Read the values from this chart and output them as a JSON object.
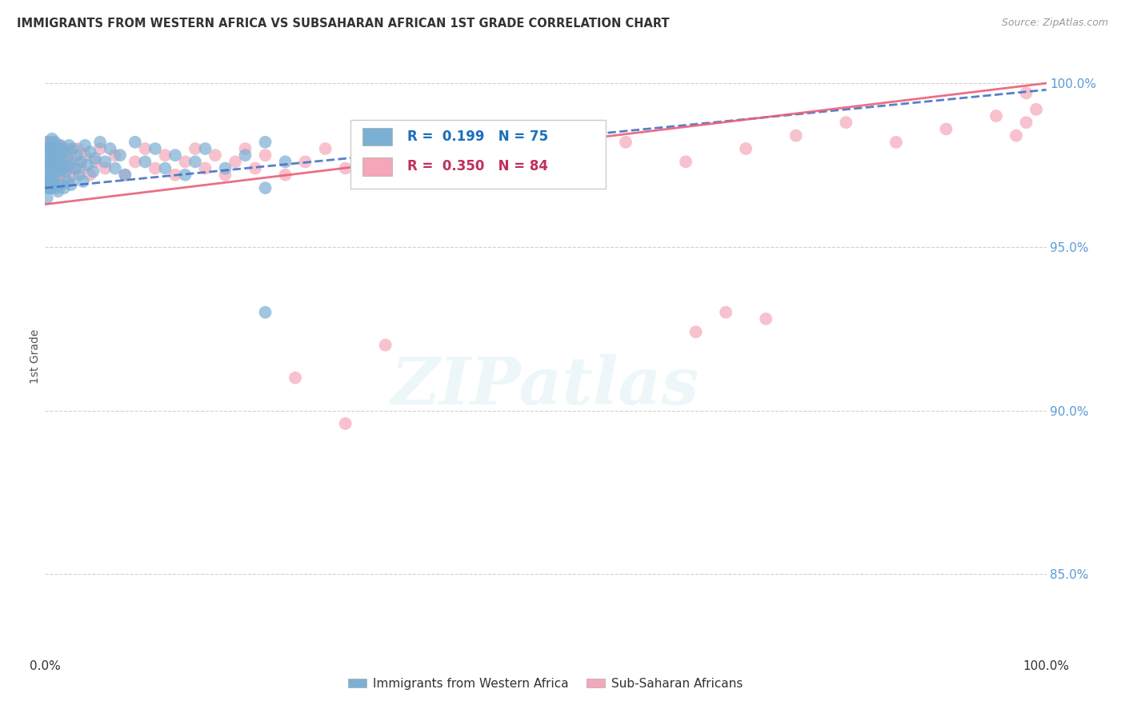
{
  "title": "IMMIGRANTS FROM WESTERN AFRICA VS SUBSAHARAN AFRICAN 1ST GRADE CORRELATION CHART",
  "source": "Source: ZipAtlas.com",
  "legend_blue_label": "Immigrants from Western Africa",
  "legend_pink_label": "Sub-Saharan Africans",
  "R_blue": 0.199,
  "N_blue": 75,
  "R_pink": 0.35,
  "N_pink": 84,
  "blue_color": "#7bafd4",
  "pink_color": "#f4a7b9",
  "blue_line_color": "#4472c4",
  "pink_line_color": "#e8607a",
  "background_color": "#ffffff",
  "grid_color": "#cccccc",
  "title_color": "#333333",
  "right_axis_color": "#5b9bd5",
  "ylabel": "1st Grade",
  "watermark": "ZIPatlas",
  "xlim": [
    0.0,
    1.0
  ],
  "ylim": [
    0.825,
    1.008
  ],
  "yticks": [
    0.85,
    0.9,
    0.95,
    1.0
  ],
  "ytick_labels": [
    "85.0%",
    "90.0%",
    "95.0%",
    "100.0%"
  ],
  "blue_scatter_x": [
    0.001,
    0.001,
    0.001,
    0.002,
    0.002,
    0.002,
    0.003,
    0.003,
    0.003,
    0.004,
    0.004,
    0.005,
    0.005,
    0.006,
    0.006,
    0.007,
    0.007,
    0.007,
    0.008,
    0.008,
    0.009,
    0.009,
    0.01,
    0.01,
    0.011,
    0.011,
    0.012,
    0.013,
    0.013,
    0.014,
    0.015,
    0.015,
    0.016,
    0.016,
    0.017,
    0.018,
    0.019,
    0.02,
    0.021,
    0.022,
    0.023,
    0.024,
    0.025,
    0.026,
    0.028,
    0.03,
    0.032,
    0.034,
    0.036,
    0.038,
    0.04,
    0.042,
    0.045,
    0.048,
    0.05,
    0.055,
    0.06,
    0.065,
    0.07,
    0.075,
    0.08,
    0.09,
    0.1,
    0.11,
    0.12,
    0.13,
    0.14,
    0.15,
    0.16,
    0.18,
    0.2,
    0.22,
    0.24,
    0.22,
    0.22
  ],
  "blue_scatter_y": [
    0.98,
    0.975,
    0.972,
    0.978,
    0.97,
    0.965,
    0.982,
    0.975,
    0.968,
    0.979,
    0.972,
    0.976,
    0.968,
    0.98,
    0.97,
    0.983,
    0.975,
    0.968,
    0.979,
    0.972,
    0.978,
    0.97,
    0.982,
    0.973,
    0.976,
    0.968,
    0.98,
    0.974,
    0.967,
    0.978,
    0.981,
    0.973,
    0.976,
    0.969,
    0.98,
    0.974,
    0.968,
    0.979,
    0.973,
    0.977,
    0.97,
    0.981,
    0.975,
    0.969,
    0.98,
    0.974,
    0.978,
    0.972,
    0.976,
    0.97,
    0.981,
    0.975,
    0.979,
    0.973,
    0.977,
    0.982,
    0.976,
    0.98,
    0.974,
    0.978,
    0.972,
    0.982,
    0.976,
    0.98,
    0.974,
    0.978,
    0.972,
    0.976,
    0.98,
    0.974,
    0.978,
    0.982,
    0.976,
    0.93,
    0.968
  ],
  "pink_scatter_x": [
    0.001,
    0.001,
    0.002,
    0.002,
    0.003,
    0.003,
    0.004,
    0.004,
    0.005,
    0.005,
    0.006,
    0.006,
    0.007,
    0.007,
    0.008,
    0.009,
    0.01,
    0.01,
    0.011,
    0.012,
    0.013,
    0.014,
    0.015,
    0.016,
    0.017,
    0.018,
    0.019,
    0.02,
    0.022,
    0.024,
    0.026,
    0.028,
    0.03,
    0.033,
    0.036,
    0.04,
    0.045,
    0.05,
    0.055,
    0.06,
    0.07,
    0.08,
    0.09,
    0.1,
    0.11,
    0.12,
    0.13,
    0.14,
    0.15,
    0.16,
    0.17,
    0.18,
    0.19,
    0.2,
    0.21,
    0.22,
    0.24,
    0.26,
    0.28,
    0.3,
    0.33,
    0.36,
    0.39,
    0.43,
    0.47,
    0.52,
    0.58,
    0.64,
    0.7,
    0.75,
    0.8,
    0.85,
    0.9,
    0.95,
    0.97,
    0.98,
    0.99,
    0.25,
    0.3,
    0.34,
    0.65,
    0.68,
    0.72,
    0.98
  ],
  "pink_scatter_y": [
    0.982,
    0.975,
    0.978,
    0.97,
    0.98,
    0.973,
    0.977,
    0.968,
    0.981,
    0.974,
    0.978,
    0.97,
    0.982,
    0.975,
    0.979,
    0.973,
    0.98,
    0.974,
    0.978,
    0.972,
    0.976,
    0.97,
    0.981,
    0.975,
    0.979,
    0.973,
    0.977,
    0.971,
    0.98,
    0.974,
    0.978,
    0.972,
    0.976,
    0.98,
    0.974,
    0.978,
    0.972,
    0.976,
    0.98,
    0.974,
    0.978,
    0.972,
    0.976,
    0.98,
    0.974,
    0.978,
    0.972,
    0.976,
    0.98,
    0.974,
    0.978,
    0.972,
    0.976,
    0.98,
    0.974,
    0.978,
    0.972,
    0.976,
    0.98,
    0.974,
    0.978,
    0.972,
    0.976,
    0.98,
    0.974,
    0.978,
    0.982,
    0.976,
    0.98,
    0.984,
    0.988,
    0.982,
    0.986,
    0.99,
    0.984,
    0.988,
    0.992,
    0.91,
    0.896,
    0.92,
    0.924,
    0.93,
    0.928,
    0.997
  ]
}
